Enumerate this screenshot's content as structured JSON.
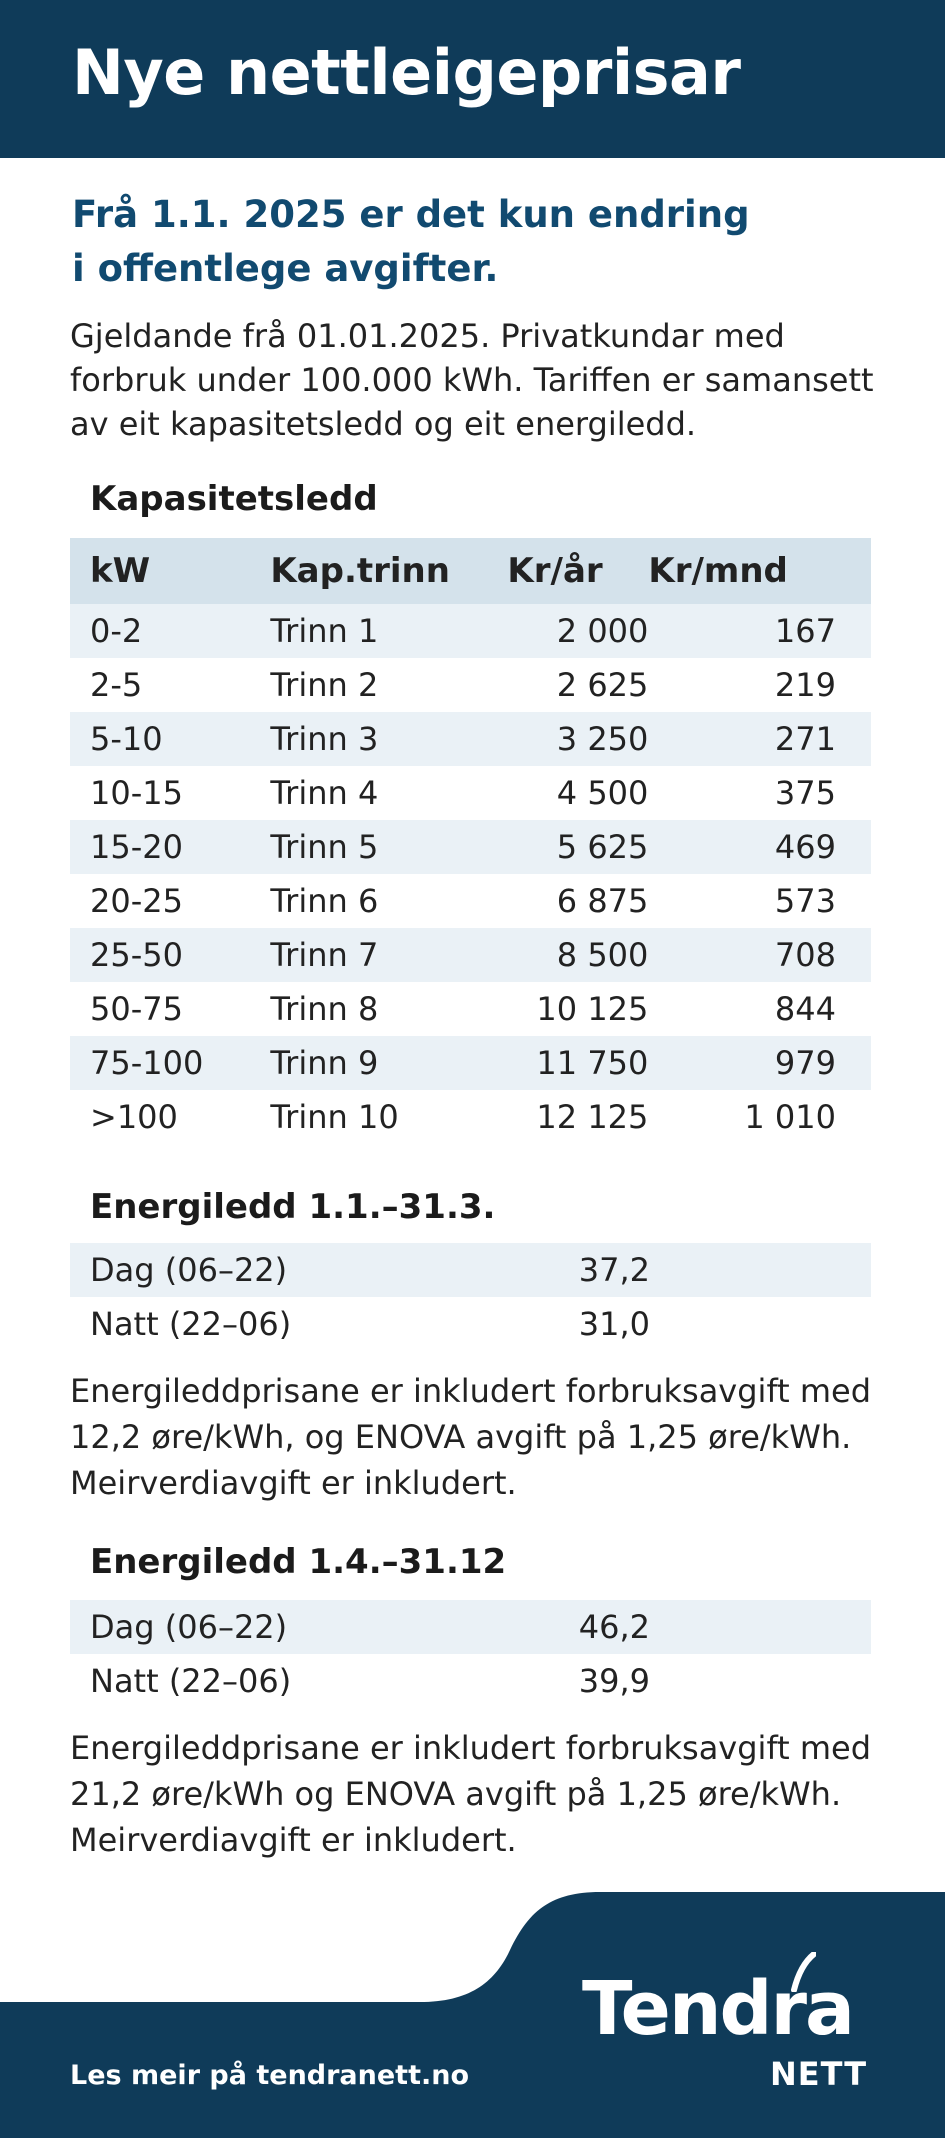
{
  "header": {
    "title": "Nye nettleigeprisar"
  },
  "subtitle": {
    "line1": "Frå 1.1. 2025 er det kun endring",
    "line2": "i offentlege avgifter."
  },
  "intro": {
    "line1": "Gjeldande frå 01.01.2025. Privatkundar med",
    "line2": "forbruk under 100.000 kWh. Tariffen er samansett",
    "line3": "av eit kapasitetsledd og eit energiledd."
  },
  "capacity": {
    "title": "Kapasitetsledd",
    "columns": [
      "kW",
      "Kap.trinn",
      "Kr/år",
      "Kr/mnd"
    ],
    "rows": [
      [
        "0-2",
        "Trinn 1",
        "2 000",
        "167"
      ],
      [
        "2-5",
        "Trinn 2",
        "2 625",
        "219"
      ],
      [
        "5-10",
        "Trinn 3",
        "3 250",
        "271"
      ],
      [
        "10-15",
        "Trinn 4",
        "4 500",
        "375"
      ],
      [
        "15-20",
        "Trinn 5",
        "5 625",
        "469"
      ],
      [
        "20-25",
        "Trinn 6",
        "6 875",
        "573"
      ],
      [
        "25-50",
        "Trinn 7",
        "8 500",
        "708"
      ],
      [
        "50-75",
        "Trinn 8",
        "10 125",
        "844"
      ],
      [
        "75-100",
        "Trinn 9",
        "11 750",
        "979"
      ],
      [
        ">100",
        "Trinn 10",
        "12 125",
        "1 010"
      ]
    ]
  },
  "energy1": {
    "title": "Energiledd 1.1.–31.3.",
    "rows": [
      [
        "Dag (06–22)",
        "37,2"
      ],
      [
        "Natt (22–06)",
        "31,0"
      ]
    ],
    "note": {
      "line1": "Energileddprisane er inkludert forbruksavgift med",
      "line2": "12,2 øre/kWh, og ENOVA avgift på 1,25 øre/kWh.",
      "line3": "Meirverdiavgift er inkludert."
    }
  },
  "energy2": {
    "title": "Energiledd 1.4.–31.12",
    "rows": [
      [
        "Dag (06–22)",
        "46,2"
      ],
      [
        "Natt (22–06)",
        "39,9"
      ]
    ],
    "note": {
      "line1": "Energileddprisane er inkludert forbruksavgift med",
      "line2": "21,2 øre/kWh og ENOVA avgift på 1,25 øre/kWh.",
      "line3": "Meirverdiavgift er inkludert."
    }
  },
  "footer": {
    "link": "Les meir på tendranett.no",
    "logo_main": "Tendra",
    "logo_sub": "NETT"
  },
  "colors": {
    "brand_navy": "#0f3b59",
    "subtitle_blue": "#114a70",
    "row_tint": "#eaf1f6",
    "head_tint": "#d4e2eb"
  }
}
